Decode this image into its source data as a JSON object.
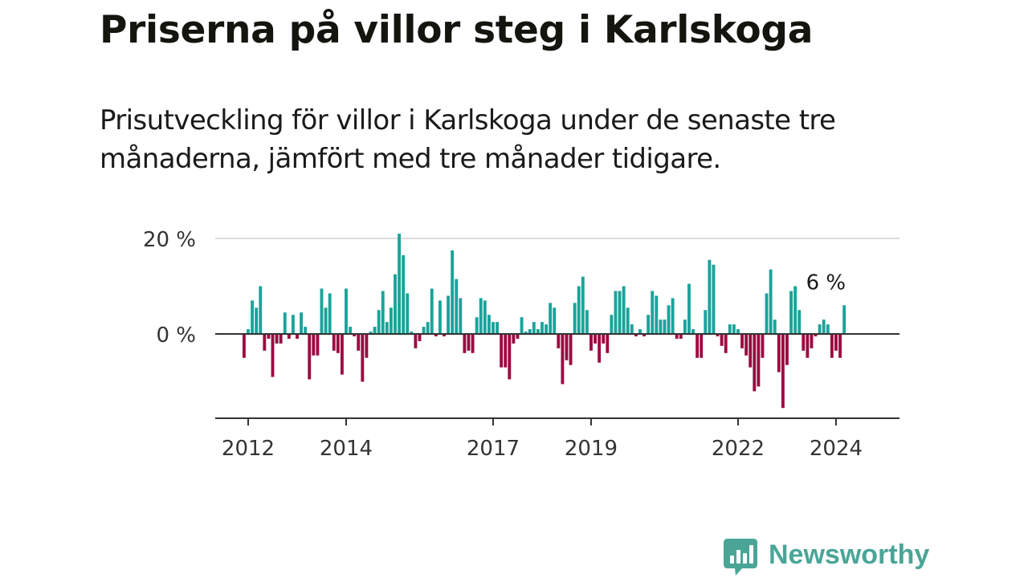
{
  "title": "Priserna på villor steg i Karlskoga",
  "subtitle": "Prisutveckling för villor i Karlskoga under de senaste tre månaderna, jämfört med tre månader tidigare.",
  "brand": {
    "name": "Newsworthy",
    "color": "#4aa597",
    "icon": "newsworthy-bar-chart-logo-icon"
  },
  "colors": {
    "positive": "#1aa39a",
    "negative": "#9c0a41",
    "grid": "#dcdcdc",
    "axis": "#333333"
  },
  "chart_data": {
    "type": "bar",
    "title": "Priserna på villor steg i Karlskoga",
    "xlabel": "",
    "ylabel": "",
    "x_ticks": [
      "2012",
      "2014",
      "2017",
      "2019",
      "2022",
      "2024"
    ],
    "x_tick_positions": [
      2012.0,
      2014.0,
      2017.0,
      2019.0,
      2022.0,
      2024.0
    ],
    "y_ticks": [
      0,
      20
    ],
    "y_tick_labels": [
      "0 %",
      "20 %"
    ],
    "ylim": [
      -17.5,
      20
    ],
    "grid": "horizontal",
    "value_label": {
      "text": "6 %",
      "value": 6
    },
    "series": [
      {
        "x_start": "2011-12",
        "x_step": "1 month",
        "values": [
          -5,
          1,
          7,
          5.5,
          10,
          -3.5,
          -1,
          -9,
          -2,
          -2,
          4.5,
          -1,
          4,
          -1,
          4.5,
          1.5,
          -9.5,
          -4.5,
          -4.5,
          9.5,
          5.5,
          8.5,
          -3.5,
          -4,
          -8.5,
          9.5,
          1.5,
          -0.5,
          -3.5,
          -10,
          -5,
          0.5,
          1.5,
          5,
          9,
          2.5,
          5.5,
          12.5,
          21,
          16.5,
          8.5,
          0.5,
          -3,
          -1.5,
          1.5,
          2.5,
          9.5,
          -0.5,
          7,
          -0.5,
          8,
          17.5,
          11.5,
          7.5,
          -4,
          -3.5,
          -4,
          3.5,
          7.5,
          7,
          4,
          2.5,
          2.5,
          -7,
          -7,
          -9.5,
          -2,
          -1,
          3.5,
          0.5,
          1,
          2.5,
          1,
          2.5,
          2,
          6.5,
          5.5,
          -3,
          -10.5,
          -5.5,
          -6.5,
          6.5,
          10,
          12,
          5,
          -3.5,
          -2,
          -6,
          -2,
          -4,
          4,
          9,
          9,
          10,
          5.5,
          2,
          -0.5,
          1,
          -0.5,
          4,
          9,
          8,
          3,
          3,
          6,
          7.5,
          -1,
          -1,
          3,
          10.5,
          1,
          -5,
          -5,
          5,
          15.5,
          14.5,
          -0.5,
          -2.5,
          -4,
          2,
          2,
          1,
          -3,
          -4.5,
          -7,
          -12,
          -11,
          -5,
          8.5,
          13.5,
          3,
          -8,
          -15.5,
          -6.5,
          9,
          10,
          5,
          -3.5,
          -5,
          -3,
          -0.5,
          2,
          3,
          2,
          -5,
          -3.5,
          -5,
          6
        ]
      }
    ]
  }
}
